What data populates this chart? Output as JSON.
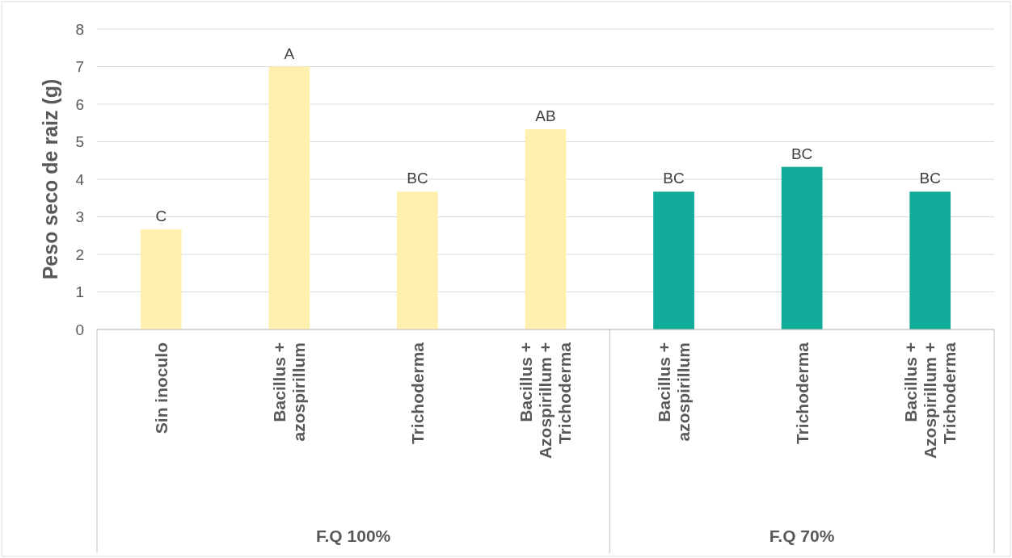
{
  "chart_data": {
    "type": "bar",
    "ylabel": "Peso seco de raiz (g)",
    "categories": [
      "Sin inoculo",
      "Bacillus + azospirillum",
      "Trichoderma",
      "Bacillus + Azospirillum + Trichoderma",
      "Bacillus + azospirillum",
      "Trichoderma",
      "Bacillus + Azospirillum + Trichoderma"
    ],
    "values": [
      2.67,
      7.0,
      3.67,
      5.33,
      3.67,
      4.33,
      3.67
    ],
    "colors": [
      "#fff0b0",
      "#fff0b0",
      "#fff0b0",
      "#fff0b0",
      "#12ac9a",
      "#12ac9a",
      "#12ac9a"
    ],
    "value_labels": [
      "C",
      "A",
      "BC",
      "AB",
      "BC",
      "BC",
      "BC"
    ],
    "annotations": [
      "F.Q 100%",
      "F.Q 70%"
    ],
    "ylim": [
      0,
      8
    ],
    "yticks": [
      0,
      1,
      2,
      3,
      4,
      5,
      6,
      7,
      8
    ],
    "grid": "y"
  }
}
